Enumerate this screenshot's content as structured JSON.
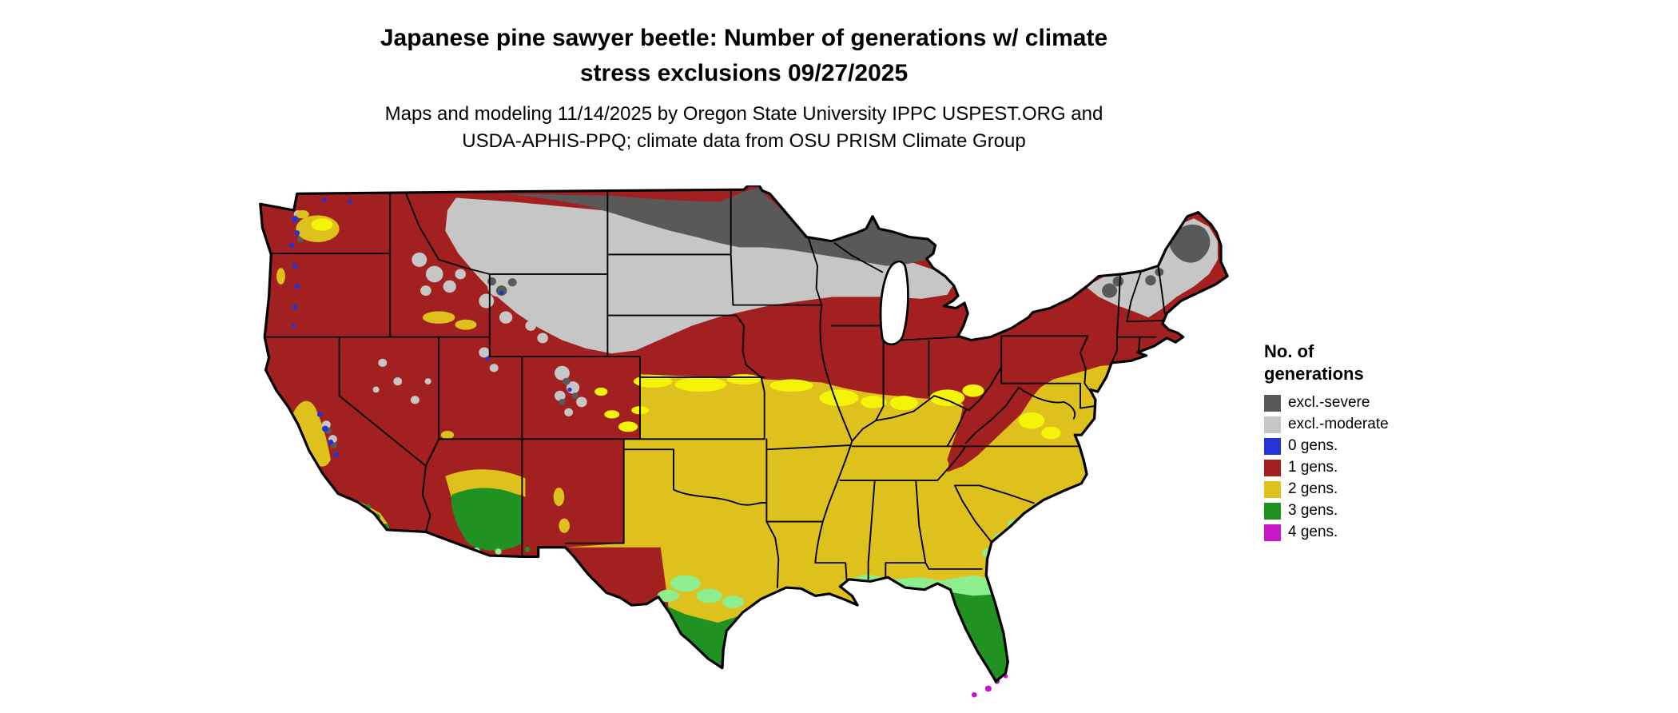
{
  "header": {
    "title_line1": "Japanese pine sawyer beetle: Number of generations w/ climate",
    "title_line2": "stress exclusions 09/27/2025",
    "subtitle_line1": "Maps and modeling 11/14/2025 by Oregon State University IPPC USPEST.ORG and",
    "subtitle_line2": "USDA-APHIS-PPQ; climate data from OSU PRISM Climate Group"
  },
  "legend": {
    "title": "No. of generations",
    "items": [
      {
        "label": "excl.-severe",
        "color": "#595959"
      },
      {
        "label": "excl.-moderate",
        "color": "#c6c6c6"
      },
      {
        "label": "0 gens.",
        "color": "#2432d8"
      },
      {
        "label": "1 gens.",
        "color": "#a32020"
      },
      {
        "label": "2 gens.",
        "color": "#dfc11d"
      },
      {
        "label": "3 gens.",
        "color": "#1f9222"
      },
      {
        "label": "4 gens.",
        "color": "#c716c7"
      }
    ]
  },
  "map": {
    "region": "Continental United States",
    "palette": {
      "severe_exclusion": "#595959",
      "moderate_exclusion": "#c6c6c6",
      "gens0": "#2432d8",
      "gens1": "#a32020",
      "gens2": "#dfc11d",
      "gens2_bright": "#f4f409",
      "gens3": "#1f9222",
      "gens3_light": "#8dee8d",
      "gens4": "#c716c7",
      "border": "#000000",
      "water": "#ffffff"
    }
  }
}
